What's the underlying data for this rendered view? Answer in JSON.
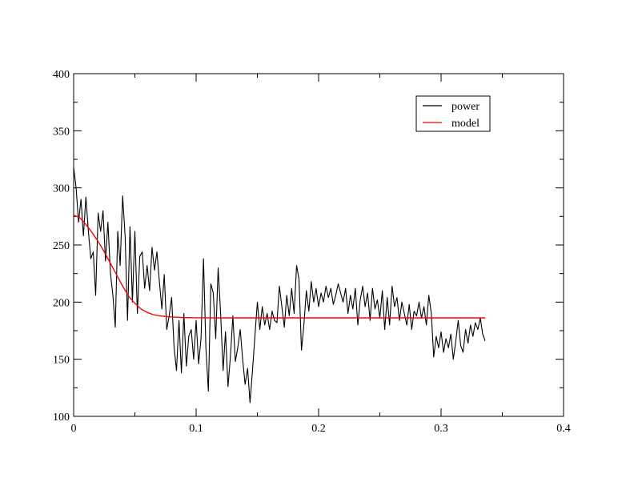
{
  "chart_data": {
    "type": "line",
    "title": "",
    "xlabel": "",
    "ylabel": "",
    "xlim": [
      0,
      0.4
    ],
    "ylim": [
      100,
      400
    ],
    "x_ticks": [
      0,
      0.1,
      0.2,
      0.3,
      0.4
    ],
    "x_tick_labels": [
      "0",
      "0.1",
      "0.2",
      "0.3",
      "0.4"
    ],
    "y_ticks": [
      100,
      150,
      200,
      250,
      300,
      350,
      400
    ],
    "y_tick_labels": [
      "100",
      "150",
      "200",
      "250",
      "300",
      "350",
      "400"
    ],
    "grid": false,
    "legend_position": "top-right",
    "series": [
      {
        "name": "power",
        "color": "#000000",
        "points": [
          [
            0.0,
            318
          ],
          [
            0.002,
            300
          ],
          [
            0.004,
            270
          ],
          [
            0.006,
            290
          ],
          [
            0.008,
            258
          ],
          [
            0.01,
            292
          ],
          [
            0.012,
            262
          ],
          [
            0.014,
            238
          ],
          [
            0.016,
            244
          ],
          [
            0.018,
            206
          ],
          [
            0.02,
            278
          ],
          [
            0.022,
            262
          ],
          [
            0.024,
            280
          ],
          [
            0.026,
            236
          ],
          [
            0.028,
            270
          ],
          [
            0.03,
            226
          ],
          [
            0.032,
            206
          ],
          [
            0.034,
            178
          ],
          [
            0.036,
            262
          ],
          [
            0.038,
            232
          ],
          [
            0.04,
            293
          ],
          [
            0.042,
            258
          ],
          [
            0.044,
            184
          ],
          [
            0.046,
            266
          ],
          [
            0.048,
            200
          ],
          [
            0.05,
            262
          ],
          [
            0.052,
            190
          ],
          [
            0.054,
            240
          ],
          [
            0.056,
            244
          ],
          [
            0.058,
            212
          ],
          [
            0.06,
            232
          ],
          [
            0.062,
            210
          ],
          [
            0.064,
            248
          ],
          [
            0.066,
            228
          ],
          [
            0.068,
            244
          ],
          [
            0.07,
            218
          ],
          [
            0.072,
            194
          ],
          [
            0.074,
            224
          ],
          [
            0.076,
            176
          ],
          [
            0.078,
            188
          ],
          [
            0.08,
            204
          ],
          [
            0.082,
            160
          ],
          [
            0.084,
            140
          ],
          [
            0.086,
            184
          ],
          [
            0.088,
            138
          ],
          [
            0.09,
            190
          ],
          [
            0.092,
            144
          ],
          [
            0.094,
            170
          ],
          [
            0.096,
            176
          ],
          [
            0.098,
            150
          ],
          [
            0.1,
            184
          ],
          [
            0.102,
            146
          ],
          [
            0.104,
            168
          ],
          [
            0.106,
            238
          ],
          [
            0.108,
            160
          ],
          [
            0.11,
            122
          ],
          [
            0.112,
            216
          ],
          [
            0.114,
            208
          ],
          [
            0.116,
            168
          ],
          [
            0.118,
            230
          ],
          [
            0.12,
            190
          ],
          [
            0.122,
            140
          ],
          [
            0.124,
            174
          ],
          [
            0.126,
            126
          ],
          [
            0.128,
            152
          ],
          [
            0.13,
            188
          ],
          [
            0.132,
            148
          ],
          [
            0.134,
            160
          ],
          [
            0.136,
            176
          ],
          [
            0.138,
            150
          ],
          [
            0.14,
            128
          ],
          [
            0.142,
            142
          ],
          [
            0.144,
            112
          ],
          [
            0.146,
            140
          ],
          [
            0.148,
            170
          ],
          [
            0.15,
            200
          ],
          [
            0.152,
            176
          ],
          [
            0.154,
            196
          ],
          [
            0.156,
            180
          ],
          [
            0.158,
            190
          ],
          [
            0.16,
            176
          ],
          [
            0.162,
            192
          ],
          [
            0.164,
            184
          ],
          [
            0.166,
            182
          ],
          [
            0.168,
            214
          ],
          [
            0.17,
            196
          ],
          [
            0.172,
            178
          ],
          [
            0.174,
            206
          ],
          [
            0.176,
            188
          ],
          [
            0.178,
            212
          ],
          [
            0.18,
            190
          ],
          [
            0.182,
            232
          ],
          [
            0.184,
            220
          ],
          [
            0.186,
            158
          ],
          [
            0.188,
            180
          ],
          [
            0.19,
            210
          ],
          [
            0.192,
            192
          ],
          [
            0.194,
            218
          ],
          [
            0.196,
            200
          ],
          [
            0.198,
            212
          ],
          [
            0.2,
            196
          ],
          [
            0.202,
            208
          ],
          [
            0.204,
            200
          ],
          [
            0.206,
            214
          ],
          [
            0.208,
            204
          ],
          [
            0.21,
            212
          ],
          [
            0.212,
            198
          ],
          [
            0.214,
            206
          ],
          [
            0.216,
            216
          ],
          [
            0.218,
            208
          ],
          [
            0.22,
            200
          ],
          [
            0.222,
            212
          ],
          [
            0.224,
            190
          ],
          [
            0.226,
            206
          ],
          [
            0.228,
            194
          ],
          [
            0.23,
            212
          ],
          [
            0.232,
            180
          ],
          [
            0.234,
            202
          ],
          [
            0.236,
            214
          ],
          [
            0.238,
            196
          ],
          [
            0.24,
            208
          ],
          [
            0.242,
            184
          ],
          [
            0.244,
            212
          ],
          [
            0.246,
            194
          ],
          [
            0.248,
            202
          ],
          [
            0.25,
            186
          ],
          [
            0.252,
            210
          ],
          [
            0.254,
            176
          ],
          [
            0.256,
            204
          ],
          [
            0.258,
            180
          ],
          [
            0.26,
            214
          ],
          [
            0.262,
            196
          ],
          [
            0.264,
            204
          ],
          [
            0.266,
            184
          ],
          [
            0.268,
            200
          ],
          [
            0.27,
            190
          ],
          [
            0.272,
            180
          ],
          [
            0.274,
            198
          ],
          [
            0.276,
            176
          ],
          [
            0.278,
            192
          ],
          [
            0.28,
            188
          ],
          [
            0.282,
            200
          ],
          [
            0.284,
            186
          ],
          [
            0.286,
            196
          ],
          [
            0.288,
            180
          ],
          [
            0.29,
            206
          ],
          [
            0.292,
            190
          ],
          [
            0.294,
            152
          ],
          [
            0.296,
            170
          ],
          [
            0.298,
            160
          ],
          [
            0.3,
            174
          ],
          [
            0.302,
            156
          ],
          [
            0.304,
            168
          ],
          [
            0.306,
            160
          ],
          [
            0.308,
            172
          ],
          [
            0.31,
            150
          ],
          [
            0.312,
            166
          ],
          [
            0.314,
            184
          ],
          [
            0.316,
            162
          ],
          [
            0.318,
            156
          ],
          [
            0.32,
            176
          ],
          [
            0.322,
            164
          ],
          [
            0.324,
            180
          ],
          [
            0.326,
            170
          ],
          [
            0.328,
            182
          ],
          [
            0.33,
            176
          ],
          [
            0.332,
            186
          ],
          [
            0.334,
            172
          ],
          [
            0.336,
            166
          ]
        ]
      },
      {
        "name": "model",
        "color": "#ff0000",
        "points": [
          [
            0.0,
            276
          ],
          [
            0.005,
            274
          ],
          [
            0.01,
            268
          ],
          [
            0.015,
            261
          ],
          [
            0.02,
            253
          ],
          [
            0.025,
            244
          ],
          [
            0.03,
            234
          ],
          [
            0.035,
            224
          ],
          [
            0.04,
            214
          ],
          [
            0.045,
            205
          ],
          [
            0.05,
            199
          ],
          [
            0.055,
            194
          ],
          [
            0.06,
            191
          ],
          [
            0.065,
            189
          ],
          [
            0.07,
            188
          ],
          [
            0.08,
            187
          ],
          [
            0.09,
            186.5
          ],
          [
            0.1,
            186.3
          ],
          [
            0.12,
            186.2
          ],
          [
            0.15,
            186.2
          ],
          [
            0.2,
            186.2
          ],
          [
            0.25,
            186.2
          ],
          [
            0.3,
            186.2
          ],
          [
            0.336,
            186.2
          ]
        ]
      }
    ]
  }
}
